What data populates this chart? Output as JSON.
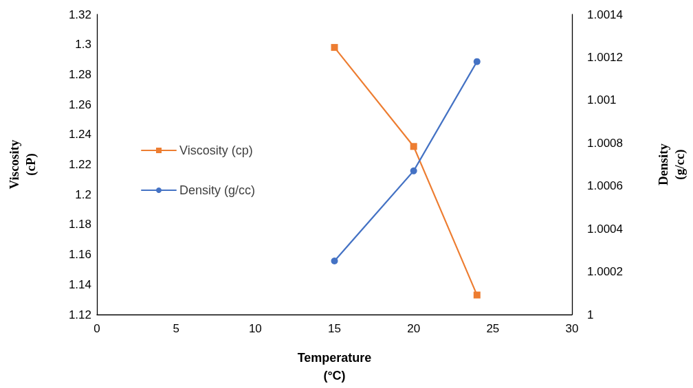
{
  "chart_data": {
    "type": "line",
    "xlabel": "Temperature\n(°C)",
    "ylabel": "Viscosity\n(cP)",
    "y2label": "Density\n(g/cc)",
    "x": [
      15,
      20,
      24
    ],
    "series": [
      {
        "name": "Viscosity (cp)",
        "color": "#ed7d31",
        "values": [
          1.298,
          1.232,
          1.133
        ],
        "marker": "square"
      },
      {
        "name": "Density (g/cc)",
        "color": "#4472c4",
        "values": [
          1.00025,
          1.00067,
          1.00118
        ],
        "marker": "circle",
        "axis": "y2"
      }
    ],
    "xlim": [
      0,
      30
    ],
    "xticks": [
      0,
      5,
      10,
      15,
      20,
      25,
      30
    ],
    "ylim": [
      1.12,
      1.32
    ],
    "yticks": [
      1.12,
      1.14,
      1.16,
      1.18,
      1.2,
      1.22,
      1.24,
      1.26,
      1.28,
      1.3,
      1.32
    ],
    "y2lim": [
      1,
      1.0014
    ],
    "y2ticks": [
      1,
      1.0002,
      1.0004,
      1.0006,
      1.0008,
      1.001,
      1.0012,
      1.0014
    ],
    "grid": false,
    "legend": "left",
    "line_style": "solid"
  }
}
